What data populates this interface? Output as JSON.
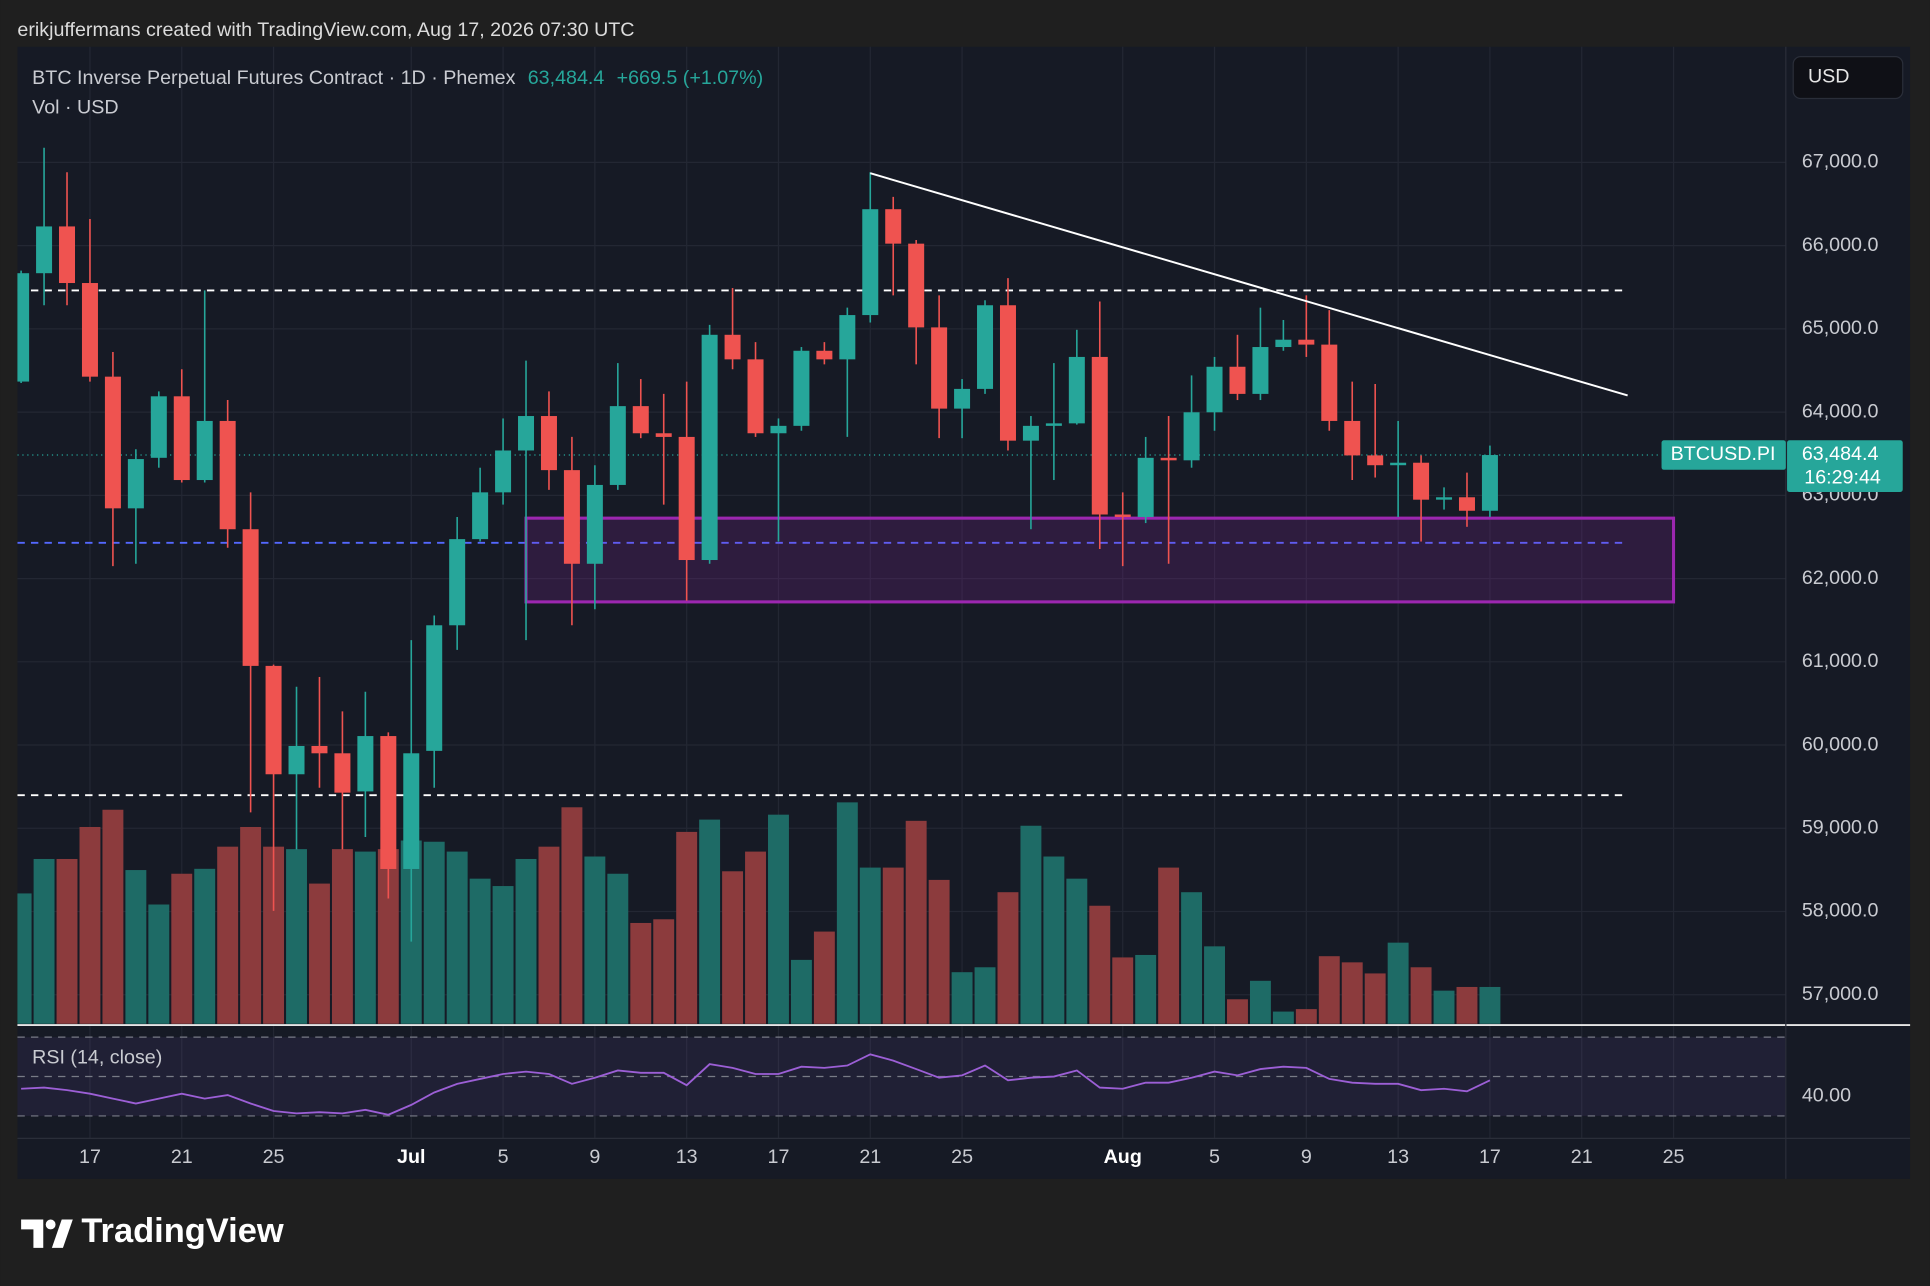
{
  "header": "erikjuffermans created with TradingView.com, Aug 17, 2026 07:30 UTC",
  "brand": "TradingView",
  "currency_button": "USD",
  "chart_data": {
    "type": "candlestick",
    "title": "BTC Inverse Perpetual Futures Contract · 1D · Phemex",
    "last": {
      "value": 63484.4,
      "label": "63,484.4"
    },
    "change": {
      "value": 669.5,
      "label": "+669.5 (+1.07%)"
    },
    "volume_title": "Vol · USD",
    "symbol_label": "BTCUSD.PI",
    "countdown": "16:29:44",
    "rsi_title": "RSI (14, close)",
    "up_color": "#26a69a",
    "down_color": "#ef5350",
    "volume_up_color": "#1e6b66",
    "volume_down_color": "#8c3b3d",
    "rsi_color": "#9c5fd6",
    "grid": true,
    "x": [
      "2026-06-14",
      "2026-06-15",
      "2026-06-16",
      "2026-06-17",
      "2026-06-18",
      "2026-06-19",
      "2026-06-20",
      "2026-06-21",
      "2026-06-22",
      "2026-06-23",
      "2026-06-24",
      "2026-06-25",
      "2026-06-26",
      "2026-06-27",
      "2026-06-28",
      "2026-06-29",
      "2026-06-30",
      "2026-07-01",
      "2026-07-02",
      "2026-07-03",
      "2026-07-04",
      "2026-07-05",
      "2026-07-06",
      "2026-07-07",
      "2026-07-08",
      "2026-07-09",
      "2026-07-10",
      "2026-07-11",
      "2026-07-12",
      "2026-07-13",
      "2026-07-14",
      "2026-07-15",
      "2026-07-16",
      "2026-07-17",
      "2026-07-18",
      "2026-07-19",
      "2026-07-20",
      "2026-07-21",
      "2026-07-22",
      "2026-07-23",
      "2026-07-24",
      "2026-07-25",
      "2026-07-26",
      "2026-07-27",
      "2026-07-28",
      "2026-07-29",
      "2026-07-30",
      "2026-07-31",
      "2026-08-01",
      "2026-08-02",
      "2026-08-03",
      "2026-08-04",
      "2026-08-05",
      "2026-08-06",
      "2026-08-07",
      "2026-08-08",
      "2026-08-09",
      "2026-08-10",
      "2026-08-11",
      "2026-08-12",
      "2026-08-13",
      "2026-08-14",
      "2026-08-15",
      "2026-08-16",
      "2026-08-17"
    ],
    "open": [
      64367,
      65669,
      66231,
      65551,
      64426,
      62844,
      63451,
      64190,
      63184,
      63894,
      62593,
      60951,
      59649,
      59989,
      59901,
      59443,
      60108,
      58511,
      59930,
      61439,
      62474,
      63036,
      63539,
      63953,
      63303,
      62178,
      63125,
      64072,
      63746,
      63702,
      62223,
      64929,
      64634,
      63746,
      63835,
      64737,
      64634,
      65166,
      66438,
      66024,
      65018,
      64042,
      64279,
      65284,
      63657,
      63835,
      63865,
      64663,
      62770,
      62740,
      63451,
      63421,
      63998,
      64545,
      64219,
      64782,
      64870,
      64811,
      63894,
      63480,
      63362,
      63392,
      62948,
      62977,
      62814.9
    ],
    "high": [
      65700,
      67177,
      66882,
      66320,
      64722,
      63554,
      64249,
      64515,
      65462,
      64145,
      63036,
      60966,
      60700,
      60818,
      60404,
      60640,
      60152,
      61261,
      61557,
      62740,
      63332,
      63924,
      64619,
      64249,
      63702,
      63362,
      64589,
      64397,
      64219,
      64367,
      65048,
      65491,
      64841,
      63924,
      64782,
      64841,
      65255,
      66882,
      66586,
      66068,
      65403,
      64397,
      65344,
      65610,
      63953,
      64589,
      64989,
      65329,
      63036,
      63702,
      63953,
      64441,
      64663,
      64929,
      65255,
      65107,
      65403,
      65225,
      64367,
      64338,
      63894,
      63480,
      63096,
      63273,
      63598
    ],
    "low": [
      64350,
      65284,
      65284,
      64367,
      62149,
      62178,
      63332,
      63155,
      63155,
      62371,
      59191,
      58007,
      58747,
      59487,
      58747,
      58895,
      58156,
      57638,
      59487,
      61143,
      62445,
      62889,
      61261,
      63066,
      61439,
      61631,
      63066,
      63687,
      62889,
      61735,
      62178,
      64515,
      63702,
      62445,
      63776,
      64574,
      63702,
      65077,
      65403,
      64574,
      63687,
      63687,
      64219,
      63539,
      62593,
      63184,
      63850,
      62356,
      62149,
      62667,
      62178,
      63332,
      63776,
      64145,
      64145,
      64737,
      64663,
      63776,
      63184,
      63214,
      62740,
      62445,
      62829,
      62622,
      62740
    ],
    "close": [
      65669,
      66231,
      65551,
      64426,
      62844,
      63436,
      64190,
      63184,
      63894,
      62593,
      60951,
      59649,
      59989,
      59901,
      59428,
      60108,
      58511,
      59901,
      61439,
      62474,
      63036,
      63539,
      63953,
      63303,
      62178,
      63125,
      64072,
      63746,
      63702,
      62223,
      64929,
      64634,
      63746,
      63835,
      64737,
      64634,
      65166,
      66438,
      66024,
      65018,
      64042,
      64279,
      65284,
      63657,
      63835,
      63865,
      64663,
      62770,
      62740,
      63451,
      63421,
      63998,
      64545,
      64219,
      64782,
      64870,
      64811,
      63894,
      63480,
      63362,
      63392,
      62948,
      62977,
      62814.9,
      63484.4
    ],
    "volume": [
      106,
      134,
      134,
      160,
      174,
      125,
      97,
      122,
      126,
      144,
      160,
      144,
      142,
      114,
      142,
      140,
      142,
      149,
      148,
      140,
      118,
      112,
      134,
      144,
      176,
      136,
      122,
      82,
      85,
      156,
      166,
      124,
      140,
      170,
      52,
      75,
      180,
      127,
      127,
      165,
      117,
      42,
      46,
      107,
      161,
      136,
      118,
      96,
      54,
      56,
      127,
      107,
      63,
      20,
      35,
      10,
      12,
      55,
      50,
      41,
      66,
      46,
      27,
      30,
      30
    ],
    "rsi": [
      43.8,
      44.4,
      43.1,
      41.3,
      38.8,
      36.3,
      38.8,
      41.3,
      38.8,
      40.6,
      36.3,
      32.5,
      31.3,
      31.9,
      31.3,
      33.1,
      30.6,
      35.6,
      41.9,
      46.3,
      48.8,
      51.3,
      52.5,
      51.3,
      46.3,
      49.4,
      53.1,
      51.9,
      51.9,
      45.6,
      56.3,
      54.4,
      51.3,
      51.3,
      55,
      54.4,
      55.6,
      61.3,
      58.1,
      53.8,
      49.4,
      50.6,
      55.6,
      48.1,
      49.4,
      50,
      53.1,
      44.4,
      43.8,
      46.9,
      46.9,
      49.4,
      52.5,
      50.6,
      53.8,
      55,
      54.4,
      48.8,
      46.9,
      46.3,
      46.3,
      43.1,
      43.8,
      42.5,
      48.1
    ],
    "xlim": [
      "2026-06-14",
      "2026-08-30"
    ],
    "xticks": [
      {
        "value": "2026-06-17",
        "label": "17"
      },
      {
        "value": "2026-06-21",
        "label": "21"
      },
      {
        "value": "2026-06-25",
        "label": "25"
      },
      {
        "value": "2026-07-01",
        "label": "Jul"
      },
      {
        "value": "2026-07-05",
        "label": "5"
      },
      {
        "value": "2026-07-09",
        "label": "9"
      },
      {
        "value": "2026-07-13",
        "label": "13"
      },
      {
        "value": "2026-07-17",
        "label": "17"
      },
      {
        "value": "2026-07-21",
        "label": "21"
      },
      {
        "value": "2026-07-25",
        "label": "25"
      },
      {
        "value": "2026-08-01",
        "label": "Aug"
      },
      {
        "value": "2026-08-05",
        "label": "5"
      },
      {
        "value": "2026-08-09",
        "label": "9"
      },
      {
        "value": "2026-08-13",
        "label": "13"
      },
      {
        "value": "2026-08-17",
        "label": "17"
      },
      {
        "value": "2026-08-21",
        "label": "21"
      },
      {
        "value": "2026-08-25",
        "label": "25"
      }
    ],
    "ylim": [
      56650,
      68360
    ],
    "yticks": [
      {
        "value": 57000,
        "label": "57,000.0"
      },
      {
        "value": 58000,
        "label": "58,000.0"
      },
      {
        "value": 59000,
        "label": "59,000.0"
      },
      {
        "value": 60000,
        "label": "60,000.0"
      },
      {
        "value": 61000,
        "label": "61,000.0"
      },
      {
        "value": 62000,
        "label": "62,000.0"
      },
      {
        "value": 63000,
        "label": "63,000.0"
      },
      {
        "value": 64000,
        "label": "64,000.0"
      },
      {
        "value": 65000,
        "label": "65,000.0"
      },
      {
        "value": 66000,
        "label": "66,000.0"
      },
      {
        "value": 67000,
        "label": "67,000.0"
      }
    ],
    "volume_lim": [
      0,
      792
    ],
    "rsi_ylim": [
      23,
      73
    ],
    "rsi_yticks": [
      {
        "value": 40,
        "label": "40.00"
      }
    ],
    "rsi_bands": [
      70,
      50,
      30
    ],
    "trendline": {
      "x": [
        "2026-07-21",
        "2026-08-23"
      ],
      "y": [
        66870,
        64200
      ],
      "color": "#ffffff"
    },
    "levels": [
      {
        "value": 65462,
        "color": "#ffffff"
      },
      {
        "value": 59398,
        "color": "#ffffff"
      },
      {
        "value": 62430,
        "color": "#5468ff"
      }
    ],
    "levels_end": "2026-08-23",
    "zone": {
      "x": [
        "2026-07-06",
        "2026-08-25"
      ],
      "y": [
        61720,
        62726
      ],
      "color": "#9c27b0"
    }
  }
}
